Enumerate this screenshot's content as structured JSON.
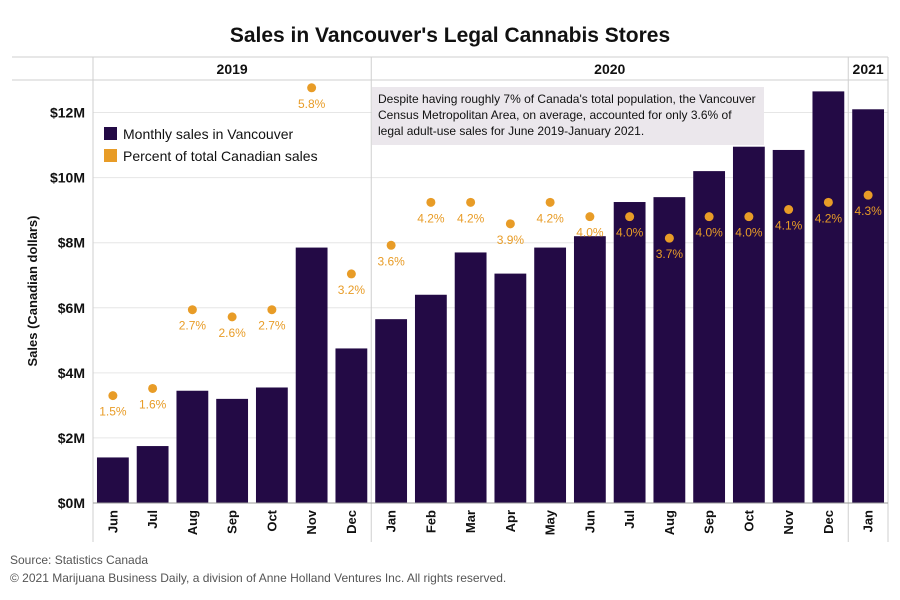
{
  "chart_data": {
    "type": "bar",
    "title": "Sales in Vancouver's Legal Cannabis Stores",
    "ylabel": "Sales (Canadian dollars)",
    "xlabel": "",
    "ylim": [
      0,
      13000000
    ],
    "yticks": [
      {
        "value": 0,
        "label": "$0M"
      },
      {
        "value": 2000000,
        "label": "$2M"
      },
      {
        "value": 4000000,
        "label": "$4M"
      },
      {
        "value": 6000000,
        "label": "$6M"
      },
      {
        "value": 8000000,
        "label": "$8M"
      },
      {
        "value": 10000000,
        "label": "$10M"
      },
      {
        "value": 12000000,
        "label": "$12M"
      }
    ],
    "years": [
      {
        "label": "2019",
        "from": 0,
        "to": 6
      },
      {
        "label": "2020",
        "from": 7,
        "to": 18
      },
      {
        "label": "2021",
        "from": 19,
        "to": 19
      }
    ],
    "categories": [
      "Jun",
      "Jul",
      "Aug",
      "Sep",
      "Oct",
      "Nov",
      "Dec",
      "Jan",
      "Feb",
      "Mar",
      "Apr",
      "May",
      "Jun",
      "Jul",
      "Aug",
      "Sep",
      "Oct",
      "Nov",
      "Dec",
      "Jan"
    ],
    "series": [
      {
        "name": "Monthly sales in Vancouver",
        "color": "#230a45",
        "values": [
          1400000,
          1750000,
          3450000,
          3200000,
          3550000,
          7850000,
          4750000,
          5650000,
          6400000,
          7700000,
          7050000,
          7850000,
          8200000,
          9250000,
          9400000,
          10200000,
          10950000,
          10850000,
          12650000,
          12100000
        ]
      },
      {
        "name": "Percent of total Canadian sales",
        "color": "#e89c27",
        "values": [
          1.5,
          1.6,
          2.7,
          2.6,
          2.7,
          5.8,
          3.2,
          3.6,
          4.2,
          4.2,
          3.9,
          4.2,
          4.0,
          4.0,
          3.7,
          4.0,
          4.0,
          4.1,
          4.2,
          4.3
        ],
        "labels": [
          "1.5%",
          "1.6%",
          "2.7%",
          "2.6%",
          "2.7%",
          "5.8%",
          "3.2%",
          "3.6%",
          "4.2%",
          "4.2%",
          "3.9%",
          "4.2%",
          "4.0%",
          "4.0%",
          "3.7%",
          "4.0%",
          "4.0%",
          "4.1%",
          "4.2%",
          "4.3%"
        ]
      }
    ],
    "grid": true,
    "legend_position": "top-left",
    "annotation": "Despite having roughly 7% of Canada's total population, the Vancouver Census Metropolitan Area, on average, accounted for only 3.6% of legal adult-use sales for June 2019-January 2021."
  },
  "footer": {
    "source": "Source: Statistics Canada",
    "copyright": "© 2021 Marijuana Business Daily, a division of Anne Holland Ventures Inc. All rights reserved."
  }
}
